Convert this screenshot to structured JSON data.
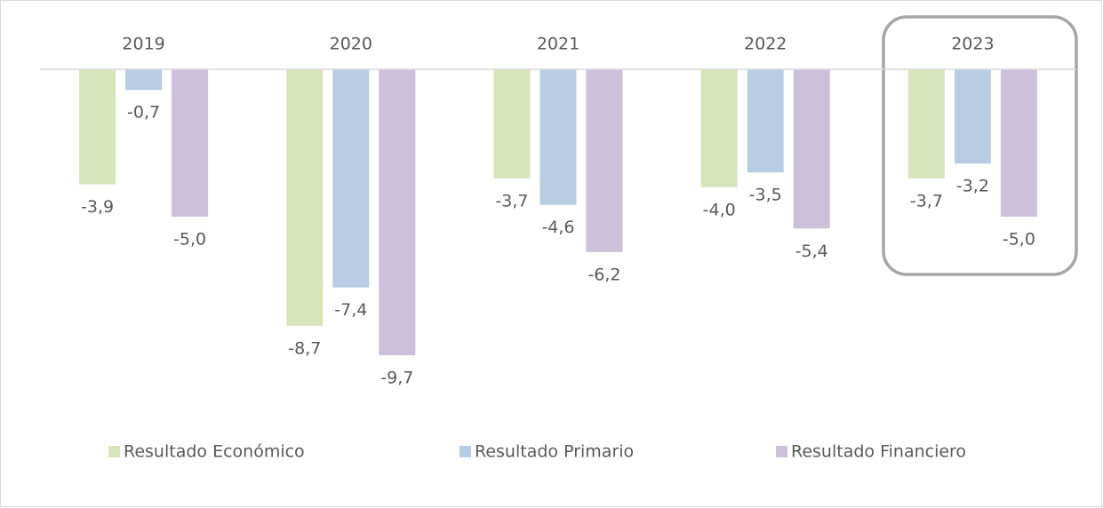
{
  "chart_data": {
    "type": "bar",
    "categories": [
      "2019",
      "2020",
      "2021",
      "2022",
      "2023"
    ],
    "series": [
      {
        "name": "Resultado Económico",
        "color": "#d8e4bc",
        "values": [
          -3.9,
          -8.7,
          -3.7,
          -4.0,
          -3.7
        ],
        "value_labels": [
          "-3,9",
          "-8,7",
          "-3,7",
          "-4,0",
          "-3,7"
        ]
      },
      {
        "name": "Resultado Primario",
        "color": "#b8cce4",
        "values": [
          -0.7,
          -7.4,
          -4.6,
          -3.5,
          -3.2
        ],
        "value_labels": [
          "-0,7",
          "-7,4",
          "-4,6",
          "-3,5",
          "-3,2"
        ]
      },
      {
        "name": "Resultado Financiero",
        "color": "#ccc0da",
        "values": [
          -5.0,
          -9.7,
          -6.2,
          -5.4,
          -5.0
        ],
        "value_labels": [
          "-5,0",
          "-9,7",
          "-6,2",
          "-5,4",
          "-5,0"
        ]
      }
    ],
    "legend": "bottom"
  }
}
